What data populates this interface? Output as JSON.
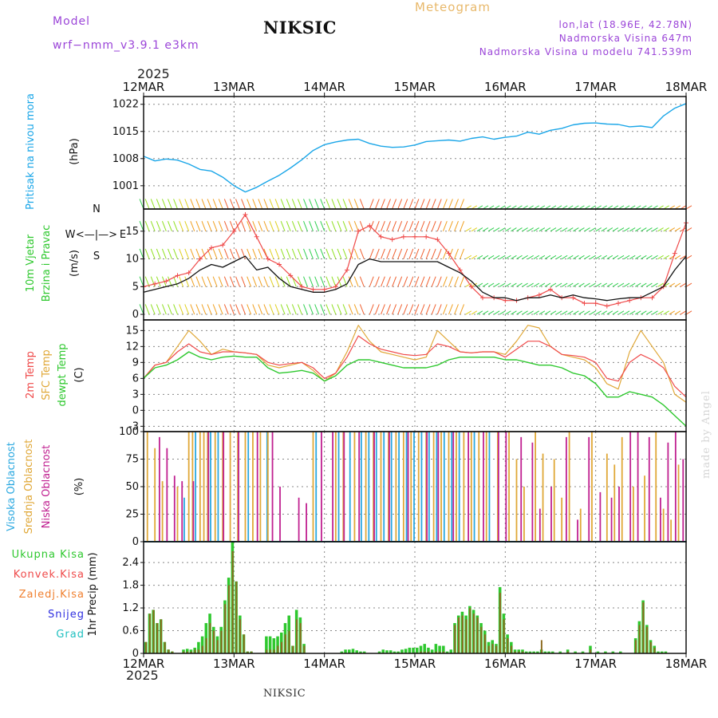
{
  "header": {
    "model_label": "Model",
    "model_name": "wrf−nmm_v3.9.1  e3km",
    "station": "NIKSIC",
    "title": "Meteogram",
    "lonlat": "lon,lat (18.96E, 42.78N)",
    "elevation": "Nadmorska Visina 647m",
    "model_elevation": "Nadmorska Visina u modelu 741.539m"
  },
  "footer": {
    "station": "NIKSIC",
    "credit": "made by Angel"
  },
  "time_axis": {
    "year": "2025",
    "labels": [
      "12MAR",
      "13MAR",
      "14MAR",
      "15MAR",
      "16MAR",
      "17MAR",
      "18MAR"
    ]
  },
  "colors": {
    "pressure": "#1aa6e8",
    "temp2m": "#ef4a4a",
    "sfc": "#e0a838",
    "dew": "#2ec82e",
    "wind_speed": "#111111",
    "gust": "#ef4a4a",
    "high_cloud": "#2aa8e0",
    "mid_cloud": "#e0a838",
    "low_cloud": "#c02090",
    "total_precip": "#2ec82e",
    "conv_precip": "#ef4a4a",
    "frz_precip": "#f08030",
    "snow": "#3030e0",
    "hail": "#20c0c0",
    "purple": "#9b45d8"
  },
  "chart_data": [
    {
      "type": "line",
      "name": "pressure",
      "ylabel_main": "Pritisak na nivou mora",
      "ylabel_unit": "(hPa)",
      "yticks": [
        "1022",
        "1015",
        "1008",
        "1001"
      ],
      "ylim": [
        995,
        1024
      ],
      "x": [
        0,
        3,
        6,
        9,
        12,
        15,
        18,
        21,
        24,
        27,
        30,
        33,
        36,
        39,
        42,
        45,
        48,
        51,
        54,
        57,
        60,
        63,
        66,
        69,
        72,
        75,
        78,
        81,
        84,
        87,
        90,
        93,
        96,
        99,
        102,
        105,
        108,
        111,
        114,
        117,
        120,
        123,
        126,
        129,
        132,
        135,
        138,
        141,
        144
      ],
      "values": [
        1008.6,
        1007.4,
        1007.9,
        1007.6,
        1006.6,
        1005.2,
        1004.8,
        1003.2,
        1001.0,
        999.4,
        1000.6,
        1002.2,
        1003.7,
        1005.6,
        1007.7,
        1010.1,
        1011.6,
        1012.3,
        1012.8,
        1013.0,
        1011.9,
        1011.2,
        1010.9,
        1011.0,
        1011.5,
        1012.4,
        1012.6,
        1012.8,
        1012.5,
        1013.2,
        1013.6,
        1013.0,
        1013.5,
        1013.8,
        1014.8,
        1014.3,
        1015.3,
        1015.8,
        1016.7,
        1017.1,
        1017.2,
        1016.9,
        1016.8,
        1016.2,
        1016.4,
        1016.0,
        1019.0,
        1021.0,
        1022.2
      ]
    },
    {
      "type": "line",
      "name": "wind",
      "ylabel_main_1": "10m Vjetar",
      "ylabel_main_2": "Brzina i Pravac",
      "ylabel_unit": "(m/s)",
      "compass": {
        "n": "N",
        "s": "S",
        "w": "W",
        "e": "E",
        "arrow": "<—|—>"
      },
      "yticks": [
        "15",
        "10",
        "5",
        "0"
      ],
      "ylim": [
        -1,
        19
      ],
      "x": [
        0,
        3,
        6,
        9,
        12,
        15,
        18,
        21,
        24,
        27,
        30,
        33,
        36,
        39,
        42,
        45,
        48,
        51,
        54,
        57,
        60,
        63,
        66,
        69,
        72,
        75,
        78,
        81,
        84,
        87,
        90,
        93,
        96,
        99,
        102,
        105,
        108,
        111,
        114,
        117,
        120,
        123,
        126,
        129,
        132,
        135,
        138,
        141,
        144
      ],
      "series": [
        {
          "name": "speed",
          "values": [
            4,
            4.5,
            5,
            5.5,
            6.5,
            8,
            9,
            8.5,
            9.5,
            10.5,
            8,
            8.5,
            6.5,
            5,
            4.5,
            4,
            4,
            4.5,
            5.5,
            9,
            10,
            9.5,
            9.5,
            9.5,
            9.5,
            9.5,
            9.5,
            8.5,
            7.5,
            6,
            4,
            3,
            3,
            2.5,
            3,
            3,
            3.5,
            3,
            3.5,
            3,
            2.8,
            2.5,
            2.8,
            3,
            3,
            4,
            5,
            8,
            10.5
          ]
        },
        {
          "name": "gust",
          "values": [
            5,
            5.5,
            6,
            7,
            7.5,
            10,
            12,
            12.5,
            15,
            18,
            14,
            10,
            9,
            7,
            5,
            4.5,
            4.5,
            5,
            8,
            15,
            16,
            14,
            13.5,
            14,
            14,
            14,
            13.5,
            11,
            8,
            5,
            3,
            3,
            2.5,
            2.5,
            3,
            3.5,
            4.5,
            3,
            3,
            2,
            2,
            1.5,
            2,
            2.5,
            3,
            3,
            5,
            11,
            16.5
          ]
        }
      ]
    },
    {
      "type": "line",
      "name": "temperature",
      "ylabel_main_1": "2m Temp",
      "ylabel_main_2": "SFC Temp",
      "ylabel_main_3": "dewpt Temp",
      "ylabel_unit": "(C)",
      "yticks": [
        "15",
        "12",
        "9",
        "6",
        "3",
        "0",
        "-3"
      ],
      "ylim": [
        -4,
        17
      ],
      "x": [
        0,
        3,
        6,
        9,
        12,
        15,
        18,
        21,
        24,
        27,
        30,
        33,
        36,
        39,
        42,
        45,
        48,
        51,
        54,
        57,
        60,
        63,
        66,
        69,
        72,
        75,
        78,
        81,
        84,
        87,
        90,
        93,
        96,
        99,
        102,
        105,
        108,
        111,
        114,
        117,
        120,
        123,
        126,
        129,
        132,
        135,
        138,
        141,
        144
      ],
      "series": [
        {
          "name": "2m Temp",
          "values": [
            6,
            8.5,
            9,
            11,
            12.5,
            11,
            10.5,
            11,
            11,
            10.8,
            10.5,
            9,
            8.5,
            8.8,
            9,
            8,
            6,
            7,
            10,
            14,
            12.5,
            11.5,
            11,
            10.5,
            10.3,
            10.5,
            12.5,
            12,
            11,
            10.8,
            11,
            11,
            10,
            11.5,
            13,
            13,
            12,
            10.5,
            10.3,
            10,
            9,
            6,
            5.5,
            9,
            10.5,
            9.5,
            8,
            4.5,
            2.5
          ]
        },
        {
          "name": "SFC Temp",
          "values": [
            6,
            8.5,
            9,
            12,
            15,
            13,
            10.5,
            11.5,
            11,
            10.8,
            10.5,
            8.5,
            8,
            8.5,
            9,
            7.5,
            5.5,
            7,
            11,
            16,
            13,
            11,
            10.5,
            10,
            9.5,
            10,
            15,
            13,
            11,
            10.8,
            11,
            11,
            10.5,
            13,
            16,
            15.5,
            12,
            10.5,
            10,
            9.5,
            8,
            5,
            4,
            11,
            15,
            12,
            9,
            3,
            1.5
          ]
        },
        {
          "name": "dewpt Temp",
          "values": [
            6,
            8,
            8.5,
            9.5,
            11,
            10,
            9.5,
            10,
            10.2,
            10,
            10,
            8,
            7,
            7.2,
            7.5,
            7,
            5.5,
            6.5,
            8.5,
            9.5,
            9.5,
            9,
            8.5,
            8,
            8,
            8,
            8.5,
            9.5,
            10,
            10,
            10,
            10,
            9.5,
            9.5,
            9,
            8.5,
            8.5,
            8,
            7,
            6.5,
            5,
            2.5,
            2.5,
            3.5,
            3,
            2.5,
            1,
            -1,
            -3
          ]
        }
      ]
    },
    {
      "type": "bar",
      "name": "cloudiness",
      "ylabel_main_1": "Visoka Oblacnost",
      "ylabel_main_2": "Srednja Oblacnost",
      "ylabel_main_3": "Niska Oblacnost",
      "ylabel_unit": "(%)",
      "yticks": [
        "100",
        "75",
        "50",
        "25",
        "0"
      ],
      "ylim": [
        0,
        100
      ],
      "high_cloud_hours": [
        11,
        14,
        18,
        20,
        28,
        33,
        46,
        52,
        55,
        58,
        60,
        62,
        64,
        66,
        68,
        70,
        72,
        74,
        76,
        78,
        80,
        82,
        84,
        88,
        92
      ],
      "high_cloud_values": [
        40,
        100,
        100,
        100,
        100,
        100,
        100,
        100,
        100,
        100,
        100,
        100,
        100,
        100,
        100,
        100,
        100,
        100,
        100,
        100,
        100,
        100,
        100,
        100,
        100
      ],
      "mid_cloud_hours": [
        1,
        3,
        5,
        9,
        12,
        13,
        15,
        16,
        17,
        19,
        21,
        23,
        25,
        27,
        29,
        31,
        33,
        45,
        51,
        53,
        56,
        59,
        61,
        63,
        65,
        67,
        69,
        71,
        73,
        75,
        77,
        79,
        81,
        83,
        85,
        87,
        89,
        91,
        94,
        97,
        99,
        101,
        104,
        106,
        109,
        111,
        113,
        116,
        119,
        123,
        125,
        127,
        130,
        133,
        136,
        138,
        140,
        142
      ],
      "mid_cloud_values": [
        100,
        85,
        55,
        50,
        100,
        100,
        100,
        100,
        100,
        100,
        100,
        100,
        100,
        100,
        100,
        100,
        100,
        100,
        100,
        100,
        100,
        100,
        100,
        100,
        100,
        100,
        100,
        100,
        100,
        100,
        100,
        100,
        100,
        100,
        100,
        100,
        100,
        100,
        100,
        100,
        75,
        50,
        100,
        80,
        75,
        40,
        100,
        30,
        100,
        80,
        70,
        95,
        50,
        60,
        100,
        30,
        20,
        70
      ],
      "low_cloud_hours": [
        4,
        6,
        8,
        10,
        13,
        17,
        21,
        25,
        30,
        34,
        36,
        41,
        43,
        47,
        50,
        53,
        57,
        61,
        65,
        70,
        75,
        78,
        82,
        86,
        90,
        94,
        96,
        100,
        103,
        105,
        108,
        112,
        115,
        118,
        121,
        124,
        126,
        129,
        131,
        134,
        137,
        139,
        141,
        143
      ],
      "low_cloud_values": [
        95,
        85,
        60,
        55,
        55,
        100,
        100,
        100,
        100,
        100,
        50,
        40,
        35,
        100,
        100,
        100,
        100,
        100,
        100,
        100,
        100,
        100,
        100,
        100,
        100,
        100,
        100,
        95,
        90,
        30,
        50,
        95,
        20,
        95,
        45,
        40,
        50,
        100,
        100,
        95,
        40,
        90,
        100,
        75
      ]
    },
    {
      "type": "bar",
      "name": "precipitation",
      "ylabel_main": "1hr Precip",
      "ylabel_unit": "(mm)",
      "legend": [
        "Ukupna  Kisa",
        "Konvek.Kisa",
        "Zaledj.Kisa",
        "Snijeg",
        "Grad"
      ],
      "yticks": [
        "2.4",
        "1.8",
        "1.2",
        "0.6",
        "0"
      ],
      "ylim": [
        0,
        2.95
      ],
      "hours": [
        0,
        1,
        2,
        3,
        4,
        5,
        6,
        7,
        10,
        11,
        12,
        13,
        14,
        15,
        16,
        17,
        18,
        19,
        20,
        21,
        22,
        23,
        24,
        25,
        26,
        27,
        28,
        32,
        33,
        34,
        35,
        36,
        37,
        38,
        39,
        40,
        41,
        42,
        52,
        53,
        54,
        55,
        56,
        57,
        58,
        62,
        63,
        64,
        65,
        66,
        67,
        68,
        69,
        70,
        71,
        72,
        73,
        74,
        75,
        76,
        77,
        78,
        79,
        80,
        81,
        82,
        83,
        84,
        85,
        86,
        87,
        88,
        89,
        90,
        91,
        92,
        93,
        94,
        95,
        96,
        97,
        98,
        99,
        100,
        101,
        102,
        103,
        104,
        105,
        106,
        107,
        108,
        110,
        112,
        114,
        116,
        118,
        120,
        122,
        124,
        126,
        130,
        131,
        132,
        133,
        134,
        135,
        136,
        137,
        138
      ],
      "total": [
        0.3,
        1.05,
        1.15,
        0.8,
        0.9,
        0.3,
        0.1,
        0.05,
        0.1,
        0.12,
        0.1,
        0.15,
        0.3,
        0.45,
        0.8,
        1.05,
        0.7,
        0.45,
        0.7,
        1.4,
        2.0,
        2.95,
        1.9,
        1.0,
        0.5,
        0.05,
        0.05,
        0.45,
        0.45,
        0.4,
        0.45,
        0.55,
        0.8,
        1.0,
        0.2,
        1.15,
        0.95,
        0.25,
        0.05,
        0.1,
        0.1,
        0.12,
        0.08,
        0.05,
        0.05,
        0.05,
        0.1,
        0.08,
        0.08,
        0.05,
        0.05,
        0.1,
        0.12,
        0.15,
        0.15,
        0.15,
        0.2,
        0.25,
        0.15,
        0.1,
        0.25,
        0.2,
        0.2,
        0.05,
        0.1,
        0.8,
        1.0,
        1.1,
        1.0,
        1.25,
        1.15,
        1.0,
        0.8,
        0.6,
        0.3,
        0.35,
        0.25,
        1.75,
        1.05,
        0.5,
        0.3,
        0.1,
        0.1,
        0.1,
        0.05,
        0.05,
        0.05,
        0.05,
        0.1,
        0.05,
        0.05,
        0.05,
        0.05,
        0.1,
        0.05,
        0.05,
        0.2,
        0.05,
        0.05,
        0.05,
        0.05,
        0.4,
        0.85,
        1.4,
        0.75,
        0.35,
        0.2,
        0.05,
        0.05,
        0.05
      ],
      "convective": [
        0.3,
        1.05,
        1.15,
        0.8,
        0.9,
        0.3,
        0.1,
        0.05,
        0.05,
        0.05,
        0.05,
        0.1,
        0.1,
        0.2,
        0.4,
        0.8,
        0.6,
        0.35,
        0.6,
        1.3,
        1.8,
        2.7,
        1.9,
        0.9,
        0.5,
        0.05,
        0.05,
        0.1,
        0.1,
        0.1,
        0.2,
        0.3,
        0.5,
        0.6,
        0.2,
        0.9,
        0.8,
        0.2,
        0.02,
        0.02,
        0.02,
        0.02,
        0.02,
        0.02,
        0.02,
        0.02,
        0.02,
        0.02,
        0.02,
        0.02,
        0.02,
        0.02,
        0.02,
        0.02,
        0.02,
        0.02,
        0.05,
        0.05,
        0.05,
        0.02,
        0.05,
        0.05,
        0.05,
        0.02,
        0.02,
        0.75,
        0.95,
        1.0,
        0.9,
        1.2,
        1.05,
        0.95,
        0.7,
        0.5,
        0.2,
        0.25,
        0.2,
        1.6,
        0.9,
        0.4,
        0.2,
        0.05,
        0.05,
        0.05,
        0.02,
        0.02,
        0.02,
        0.02,
        0.35,
        0.02,
        0.02,
        0.02,
        0.02,
        0.05,
        0.02,
        0.02,
        0.1,
        0.02,
        0.02,
        0.02,
        0.02,
        0.35,
        0.75,
        1.35,
        0.7,
        0.3,
        0.15,
        0.02,
        0.02,
        0.02
      ]
    }
  ]
}
